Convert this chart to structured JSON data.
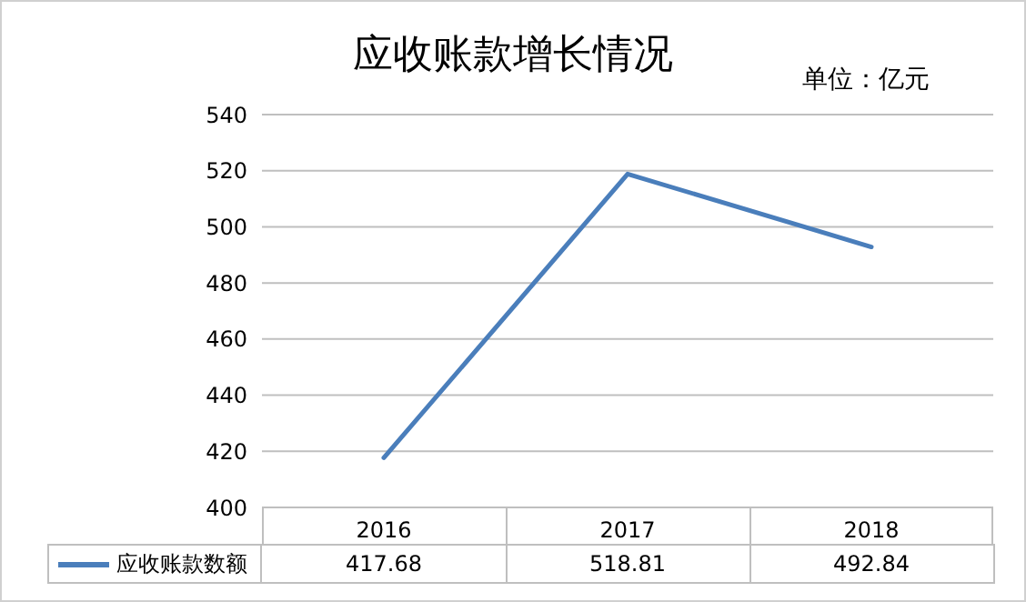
{
  "chart_data": {
    "type": "line",
    "title": "应收账款增长情况",
    "annotations": [
      "单位：亿元"
    ],
    "categories": [
      "2016",
      "2017",
      "2018"
    ],
    "series": [
      {
        "name": "应收账款数额",
        "color": "#4a7ebb",
        "values": [
          417.68,
          518.81,
          492.84
        ]
      }
    ],
    "ylim": [
      400,
      540
    ],
    "yticks": [
      400,
      420,
      440,
      460,
      480,
      500,
      520,
      540
    ],
    "grid": "y",
    "legend": "bottom",
    "data_labels": true,
    "marker": "none",
    "line_style": "solid"
  }
}
